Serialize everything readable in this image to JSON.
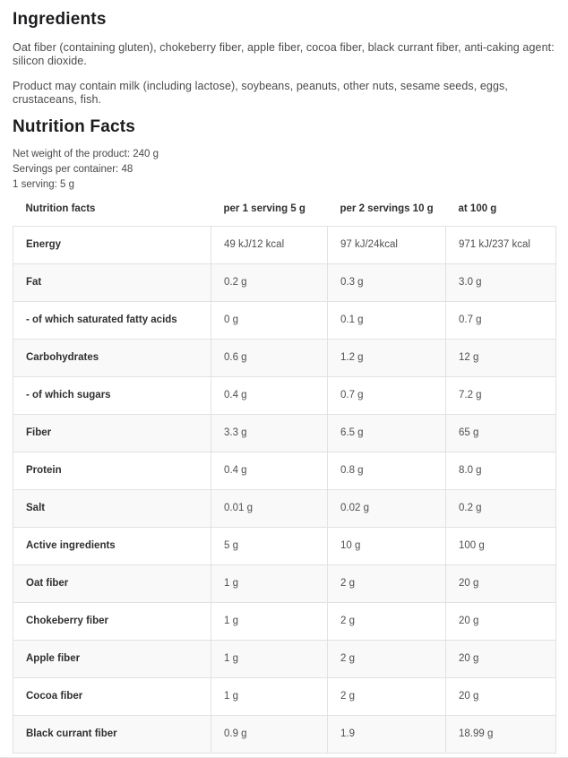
{
  "ingredients": {
    "heading": "Ingredients",
    "composition": "Oat fiber (containing gluten), chokeberry fiber, apple fiber, cocoa fiber, black currant fiber, anti-caking agent: silicon dioxide.",
    "allergens": "Product may contain milk (including lactose), soybeans, peanuts, other nuts, sesame seeds, eggs, crustaceans, fish."
  },
  "nutrition": {
    "heading": "Nutrition Facts",
    "net_weight": "Net weight of the product: 240 g",
    "servings_per_container": "Servings per container: 48",
    "serving_size": "1 serving: 5 g",
    "table": {
      "columns": [
        "Nutrition facts",
        "per 1 serving 5 g",
        "per 2 servings 10 g",
        "at 100 g"
      ],
      "rows": [
        {
          "label": "Energy",
          "per_serving": "49 kJ/12 kcal",
          "per_2_servings": "97 kJ/24kcal",
          "per_100g": "971 kJ/237 kcal"
        },
        {
          "label": "Fat",
          "per_serving": "0.2 g",
          "per_2_servings": "0.3 g",
          "per_100g": "3.0 g"
        },
        {
          "label": "- of which saturated fatty acids",
          "per_serving": "0 g",
          "per_2_servings": "0.1 g",
          "per_100g": "0.7 g"
        },
        {
          "label": "Carbohydrates",
          "per_serving": "0.6 g",
          "per_2_servings": "1.2 g",
          "per_100g": "12 g"
        },
        {
          "label": "- of which sugars",
          "per_serving": "0.4 g",
          "per_2_servings": "0.7 g",
          "per_100g": "7.2 g"
        },
        {
          "label": "Fiber",
          "per_serving": "3.3 g",
          "per_2_servings": "6.5 g",
          "per_100g": "65 g"
        },
        {
          "label": "Protein",
          "per_serving": "0.4 g",
          "per_2_servings": "0.8 g",
          "per_100g": "8.0 g"
        },
        {
          "label": "Salt",
          "per_serving": "0.01 g",
          "per_2_servings": "0.02 g",
          "per_100g": "0.2 g"
        },
        {
          "label": "Active ingredients",
          "per_serving": "5 g",
          "per_2_servings": "10 g",
          "per_100g": "100 g"
        },
        {
          "label": "Oat fiber",
          "per_serving": "1 g",
          "per_2_servings": "2 g",
          "per_100g": "20 g"
        },
        {
          "label": "Chokeberry fiber",
          "per_serving": "1 g",
          "per_2_servings": "2 g",
          "per_100g": "20 g"
        },
        {
          "label": "Apple fiber",
          "per_serving": "1 g",
          "per_2_servings": "2 g",
          "per_100g": "20 g"
        },
        {
          "label": "Cocoa fiber",
          "per_serving": "1 g",
          "per_2_servings": "2 g",
          "per_100g": "20 g"
        },
        {
          "label": "Black currant fiber",
          "per_serving": "0.9 g",
          "per_2_servings": "1.9",
          "per_100g": "18.99 g"
        }
      ]
    }
  },
  "colors": {
    "heading_text": "#1c1c1e",
    "body_text": "#4a4a4a",
    "table_border": "#e2e2e2",
    "stripe_row": "#f9f9f9"
  }
}
